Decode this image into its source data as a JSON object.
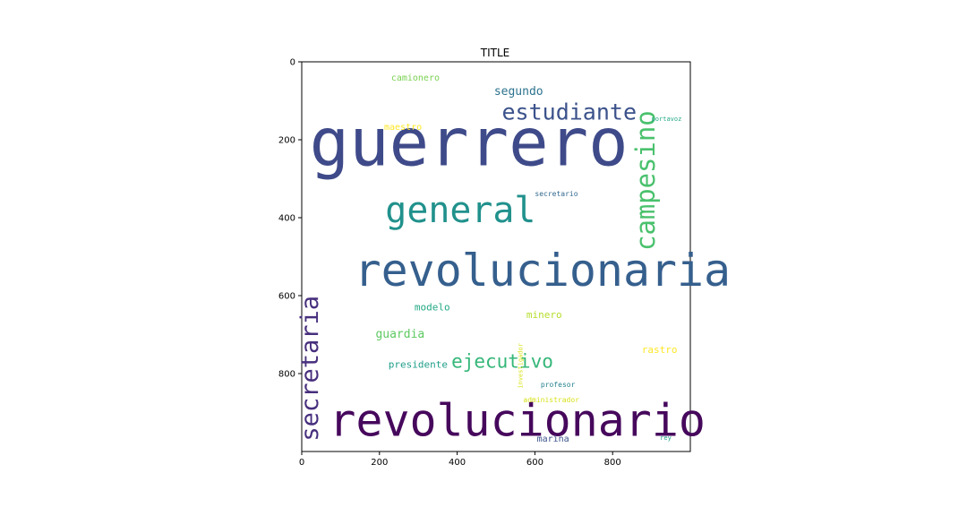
{
  "chart_data": {
    "type": "wordcloud",
    "title": "TITLE",
    "xlim": [
      0,
      1000
    ],
    "ylim": [
      1000,
      0
    ],
    "x_ticks": [
      0,
      200,
      400,
      600,
      800
    ],
    "y_ticks": [
      0,
      200,
      400,
      600,
      800
    ],
    "words": [
      {
        "text": "guerrero",
        "x": 20,
        "y": 265,
        "size": 74,
        "color": "#3e4a89",
        "rotate": false
      },
      {
        "text": "revolucionaria",
        "x": 135,
        "y": 575,
        "size": 50,
        "color": "#355f8d",
        "rotate": false
      },
      {
        "text": "revolucionario",
        "x": 70,
        "y": 960,
        "size": 50,
        "color": "#46085c",
        "rotate": false
      },
      {
        "text": "general",
        "x": 215,
        "y": 412,
        "size": 40,
        "color": "#21918c",
        "rotate": false
      },
      {
        "text": "campesino",
        "x": 908,
        "y": 125,
        "size": 29,
        "color": "#4ac16d",
        "rotate": true
      },
      {
        "text": "secretaria",
        "x": 42,
        "y": 600,
        "size": 27,
        "color": "#472f7d",
        "rotate": true
      },
      {
        "text": "estudiante",
        "x": 515,
        "y": 148,
        "size": 25,
        "color": "#3b528b",
        "rotate": false
      },
      {
        "text": "ejecutivo",
        "x": 385,
        "y": 785,
        "size": 21,
        "color": "#35b779",
        "rotate": false
      },
      {
        "text": "segundo",
        "x": 495,
        "y": 85,
        "size": 13,
        "color": "#2c728e",
        "rotate": false
      },
      {
        "text": "guardia",
        "x": 190,
        "y": 708,
        "size": 13,
        "color": "#5ec962",
        "rotate": false
      },
      {
        "text": "presidente",
        "x": 223,
        "y": 785,
        "size": 11,
        "color": "#1f9e89",
        "rotate": false
      },
      {
        "text": "modelo",
        "x": 290,
        "y": 638,
        "size": 11,
        "color": "#22a884",
        "rotate": false
      },
      {
        "text": "minero",
        "x": 578,
        "y": 657,
        "size": 11,
        "color": "#b5de2b",
        "rotate": false
      },
      {
        "text": "rastro",
        "x": 875,
        "y": 747,
        "size": 11,
        "color": "#fde725",
        "rotate": false
      },
      {
        "text": "camionero",
        "x": 230,
        "y": 48,
        "size": 10,
        "color": "#7ad151",
        "rotate": false
      },
      {
        "text": "maestro",
        "x": 212,
        "y": 175,
        "size": 10,
        "color": "#fde725",
        "rotate": false
      },
      {
        "text": "marina",
        "x": 605,
        "y": 975,
        "size": 10,
        "color": "#3b528b",
        "rotate": false
      },
      {
        "text": "secretario",
        "x": 600,
        "y": 345,
        "size": 8,
        "color": "#31688e",
        "rotate": false
      },
      {
        "text": "profesor",
        "x": 615,
        "y": 835,
        "size": 8,
        "color": "#26828e",
        "rotate": false
      },
      {
        "text": "administrador",
        "x": 570,
        "y": 873,
        "size": 8,
        "color": "#d8e219",
        "rotate": false
      },
      {
        "text": "portavoz",
        "x": 900,
        "y": 152,
        "size": 7,
        "color": "#22a884",
        "rotate": false
      },
      {
        "text": "investigador",
        "x": 568,
        "y": 722,
        "size": 7,
        "color": "#d8e219",
        "rotate": true
      },
      {
        "text": "rey",
        "x": 922,
        "y": 970,
        "size": 7,
        "color": "#1fa187",
        "rotate": false
      }
    ]
  }
}
